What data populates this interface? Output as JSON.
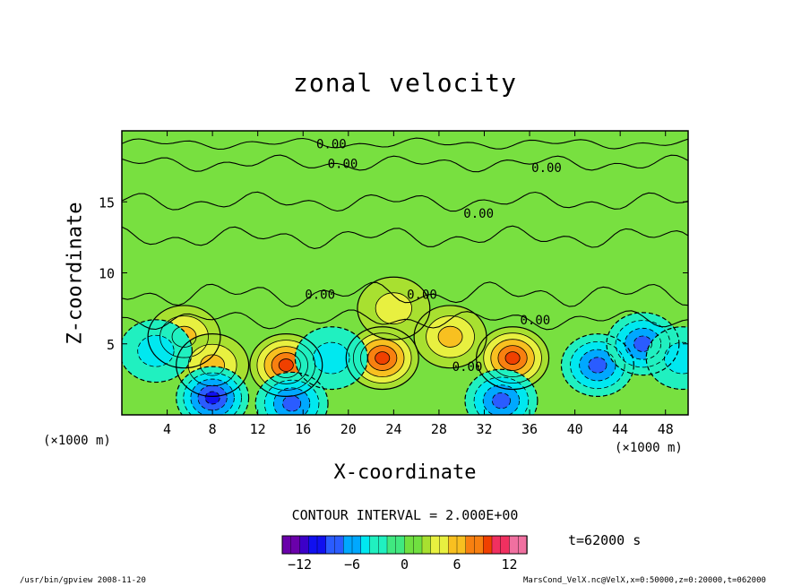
{
  "chart_data": {
    "type": "heatmap",
    "title": "zonal velocity",
    "xlabel": "X-coordinate",
    "ylabel": "Z-coordinate",
    "x_unit": "(×1000 m)",
    "y_unit": "(×1000 m)",
    "xlim": [
      0,
      50
    ],
    "ylim": [
      0,
      20
    ],
    "x_ticks": [
      4,
      8,
      12,
      16,
      20,
      24,
      28,
      32,
      36,
      40,
      44,
      48
    ],
    "y_ticks": [
      5,
      10,
      15
    ],
    "contour_interval_text": "CONTOUR INTERVAL = 2.000E+00",
    "contour_labels": [
      {
        "text": "0.00",
        "x": 18.5,
        "z": 19.1
      },
      {
        "text": "0.00",
        "x": 19.5,
        "z": 17.7
      },
      {
        "text": "0.00",
        "x": 37.5,
        "z": 17.4
      },
      {
        "text": "0.00",
        "x": 31.5,
        "z": 14.2
      },
      {
        "text": "0.00",
        "x": 17.5,
        "z": 8.5
      },
      {
        "text": "0.00",
        "x": 26.5,
        "z": 8.5
      },
      {
        "text": "0.00",
        "x": 36.5,
        "z": 6.7
      },
      {
        "text": "0.00",
        "x": 30.5,
        "z": 3.4
      }
    ],
    "features": [
      {
        "type": "max",
        "x": 5.5,
        "z": 5.5,
        "value": 6
      },
      {
        "type": "max",
        "x": 8,
        "z": 3.5,
        "value": 6
      },
      {
        "type": "max",
        "x": 14.5,
        "z": 3.5,
        "value": 9
      },
      {
        "type": "max",
        "x": 23,
        "z": 4,
        "value": 9
      },
      {
        "type": "max",
        "x": 29,
        "z": 5.5,
        "value": 5
      },
      {
        "type": "max",
        "x": 34.5,
        "z": 4,
        "value": 9
      },
      {
        "type": "max",
        "x": 24,
        "z": 7.5,
        "value": 4
      },
      {
        "type": "min",
        "x": 8,
        "z": 1.2,
        "value": -9
      },
      {
        "type": "min",
        "x": 15,
        "z": 0.8,
        "value": -7
      },
      {
        "type": "min",
        "x": 3,
        "z": 4.5,
        "value": -4
      },
      {
        "type": "min",
        "x": 18.5,
        "z": 4,
        "value": -3
      },
      {
        "type": "min",
        "x": 33.5,
        "z": 1,
        "value": -7
      },
      {
        "type": "min",
        "x": 42,
        "z": 3.5,
        "value": -8
      },
      {
        "type": "min",
        "x": 46,
        "z": 5,
        "value": -7
      },
      {
        "type": "min",
        "x": 49.5,
        "z": 4,
        "value": -3
      }
    ],
    "colorbar": {
      "range": [
        -14,
        14
      ],
      "ticks": [
        -12,
        -6,
        0,
        6,
        12
      ],
      "colors": [
        "#6a00aa",
        "#3c00c8",
        "#1010f0",
        "#2a5cff",
        "#00a8ff",
        "#00e8f0",
        "#20f0c0",
        "#40e880",
        "#70e040",
        "#a8e030",
        "#e8f040",
        "#f8c020",
        "#f88010",
        "#f04000",
        "#f03060",
        "#f070a0"
      ]
    }
  },
  "time_text": "t=62000 s",
  "footer_left": "/usr/bin/gpview   2008-11-20",
  "footer_right": "MarsCond_VelX.nc@VelX,x=0:50000,z=0:20000,t=062000"
}
